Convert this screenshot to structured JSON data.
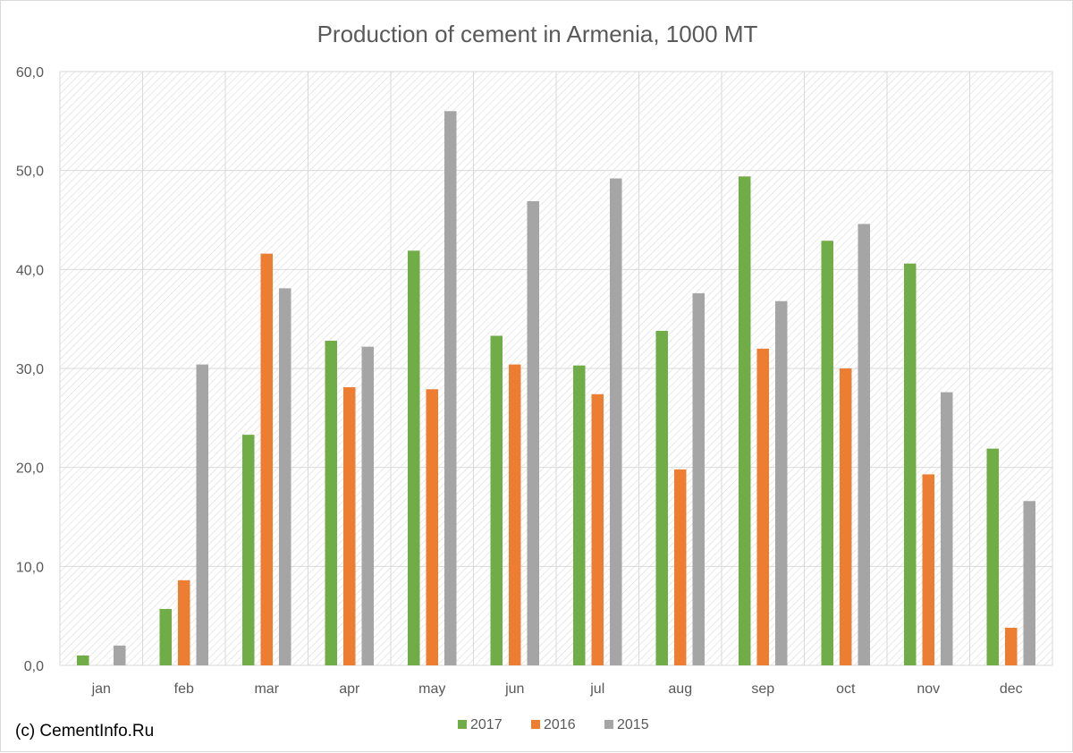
{
  "chart_data": {
    "type": "bar",
    "title": "Production of cement in Armenia, 1000 MT",
    "categories": [
      "jan",
      "feb",
      "mar",
      "apr",
      "may",
      "jun",
      "jul",
      "aug",
      "sep",
      "oct",
      "nov",
      "dec"
    ],
    "series": [
      {
        "name": "2017",
        "color": "#70ad47",
        "values": [
          1.0,
          5.7,
          23.3,
          32.8,
          41.9,
          33.3,
          30.3,
          33.8,
          49.4,
          42.9,
          40.6,
          21.9
        ]
      },
      {
        "name": "2016",
        "color": "#ed7d31",
        "values": [
          0.0,
          8.6,
          41.6,
          28.1,
          27.9,
          30.4,
          27.4,
          19.8,
          32.0,
          30.0,
          19.3,
          3.8
        ]
      },
      {
        "name": "2015",
        "color": "#a5a5a5",
        "values": [
          2.0,
          30.4,
          38.1,
          32.2,
          56.0,
          46.9,
          49.2,
          37.6,
          36.8,
          44.6,
          27.6,
          16.6
        ]
      }
    ],
    "ylim": [
      0,
      60
    ],
    "yticks": [
      "0,0",
      "10,0",
      "20,0",
      "30,0",
      "40,0",
      "50,0",
      "60,0"
    ],
    "grid": true,
    "legend_position": "bottom"
  },
  "source_note": "(c) CementInfo.Ru"
}
